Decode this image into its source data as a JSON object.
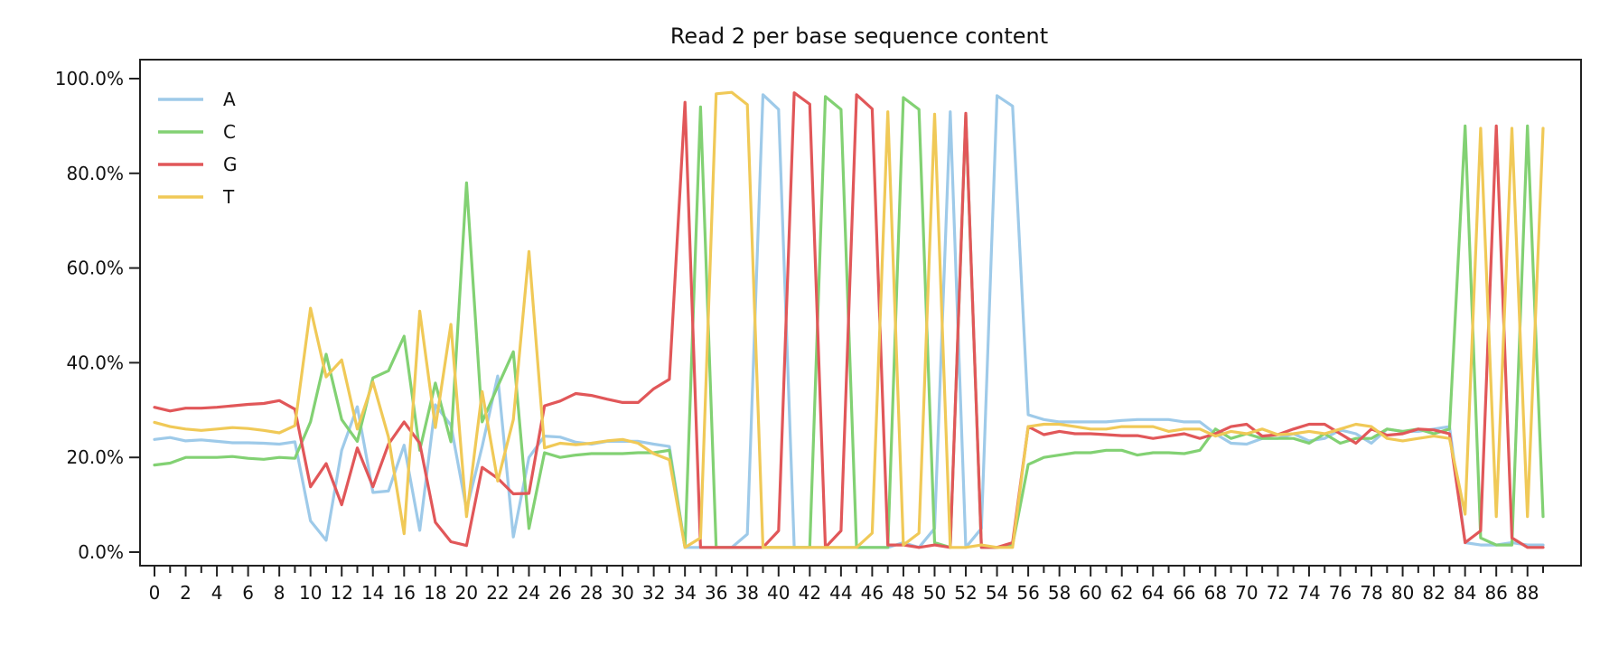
{
  "chart_data": {
    "type": "line",
    "title": "Read 2 per base sequence content",
    "xlabel": "",
    "ylabel": "",
    "xlim": [
      0,
      89
    ],
    "ylim": [
      0,
      100
    ],
    "x_ticks": [
      0,
      2,
      4,
      6,
      8,
      10,
      12,
      14,
      16,
      18,
      20,
      22,
      24,
      26,
      28,
      30,
      32,
      34,
      36,
      38,
      40,
      42,
      44,
      46,
      48,
      50,
      52,
      54,
      56,
      58,
      60,
      62,
      64,
      66,
      68,
      70,
      72,
      74,
      76,
      78,
      80,
      82,
      84,
      86,
      88
    ],
    "y_ticks": [
      {
        "value": 0,
        "label": "0.0%"
      },
      {
        "value": 20,
        "label": "20.0%"
      },
      {
        "value": 40,
        "label": "40.0%"
      },
      {
        "value": 60,
        "label": "60.0%"
      },
      {
        "value": 80,
        "label": "80.0%"
      },
      {
        "value": 100,
        "label": "100.0%"
      }
    ],
    "grid": false,
    "legend_position": "top-left",
    "x": [
      0,
      1,
      2,
      3,
      4,
      5,
      6,
      7,
      8,
      9,
      10,
      11,
      12,
      13,
      14,
      15,
      16,
      17,
      18,
      19,
      20,
      21,
      22,
      23,
      24,
      25,
      26,
      27,
      28,
      29,
      30,
      31,
      32,
      33,
      34,
      35,
      36,
      37,
      38,
      39,
      40,
      41,
      42,
      43,
      44,
      45,
      46,
      47,
      48,
      49,
      50,
      51,
      52,
      53,
      54,
      55,
      56,
      57,
      58,
      59,
      60,
      61,
      62,
      63,
      64,
      65,
      66,
      67,
      68,
      69,
      70,
      71,
      72,
      73,
      74,
      75,
      76,
      77,
      78,
      79,
      80,
      81,
      82,
      83,
      84,
      85,
      86,
      87,
      88,
      89
    ],
    "series": [
      {
        "name": "A",
        "color": "#9ecae9",
        "values": [
          23.8,
          24.2,
          23.5,
          23.7,
          23.4,
          23.1,
          23.1,
          23,
          22.8,
          23.3,
          6.6,
          2.5,
          21.5,
          30.7,
          12.6,
          12.9,
          22.6,
          4.6,
          31.1,
          26.8,
          9,
          22.3,
          37.2,
          3.2,
          20,
          24.5,
          24.3,
          23.2,
          22.8,
          23.4,
          23.4,
          23.4,
          22.8,
          22.3,
          1,
          1,
          1,
          1,
          3.8,
          96.6,
          93.5,
          1,
          1,
          1,
          1,
          1,
          1,
          1,
          2,
          1,
          5,
          93,
          1,
          5,
          96.4,
          94.2,
          29,
          28,
          27.5,
          27.5,
          27.5,
          27.5,
          27.8,
          28,
          28,
          28,
          27.5,
          27.5,
          25,
          23,
          22.8,
          24,
          24,
          25,
          23.5,
          24,
          25.8,
          25,
          23,
          26,
          25.5,
          25.5,
          26,
          26.5,
          2,
          1.5,
          1.5,
          2,
          1.5,
          1.5
        ]
      },
      {
        "name": "C",
        "color": "#82d173",
        "values": [
          18.4,
          18.8,
          20,
          20,
          20,
          20.2,
          19.8,
          19.6,
          20,
          19.8,
          27.5,
          41.8,
          28,
          23.4,
          36.8,
          38.3,
          45.6,
          21.5,
          35.7,
          23.3,
          78,
          27.5,
          35,
          42.3,
          5,
          21,
          20,
          20.5,
          20.8,
          20.8,
          20.8,
          21,
          21,
          21.5,
          1,
          94,
          1,
          1,
          1,
          1,
          1,
          1,
          1,
          96.2,
          93.5,
          1,
          1,
          1,
          96,
          93.5,
          2,
          1,
          92.3,
          1,
          1,
          1.5,
          18.5,
          20,
          20.5,
          21,
          21,
          21.5,
          21.5,
          20.5,
          21,
          21,
          20.8,
          21.5,
          26,
          24,
          25,
          24,
          24,
          24,
          23,
          25,
          23,
          24,
          24,
          26,
          25.5,
          26,
          25,
          26,
          90,
          3,
          1.5,
          1.5,
          90,
          7.5
        ]
      },
      {
        "name": "G",
        "color": "#e15759",
        "values": [
          30.6,
          29.8,
          30.4,
          30.4,
          30.6,
          30.9,
          31.2,
          31.4,
          32,
          30.2,
          13.8,
          18.7,
          10,
          22,
          13.8,
          22.8,
          27.5,
          23,
          6.3,
          2.2,
          1.4,
          17.9,
          15.6,
          12.3,
          12.4,
          30.9,
          31.9,
          33.5,
          33.1,
          32.3,
          31.6,
          31.6,
          34.5,
          36.5,
          95,
          1,
          1,
          1,
          1,
          1,
          4.5,
          97,
          94.6,
          1,
          4.5,
          96.6,
          93.6,
          1.5,
          1.5,
          1,
          1.5,
          1,
          92.7,
          1,
          1,
          2,
          26.5,
          24.8,
          25.5,
          25,
          25,
          24.8,
          24.6,
          24.6,
          24,
          24.5,
          25,
          24,
          25,
          26.5,
          27,
          24.5,
          24.8,
          26,
          27,
          27,
          25,
          23,
          26,
          24.7,
          25,
          26,
          25.8,
          25,
          2,
          4.5,
          90,
          3,
          1,
          1
        ]
      },
      {
        "name": "T",
        "color": "#f0c957",
        "values": [
          27.4,
          26.5,
          26,
          25.7,
          26,
          26.3,
          26.1,
          25.7,
          25.2,
          26.7,
          51.5,
          37,
          40.6,
          26,
          35.9,
          24.3,
          3.9,
          50.9,
          26.3,
          48.1,
          7.5,
          33.9,
          15,
          28,
          63.5,
          22,
          23,
          22.7,
          23,
          23.5,
          23.8,
          23,
          20.8,
          19.5,
          1,
          3,
          96.8,
          97.1,
          94.5,
          1,
          1,
          1,
          1,
          1,
          1,
          1,
          4,
          93,
          1.5,
          4,
          92.5,
          1,
          1,
          1.5,
          1,
          1,
          26.5,
          27,
          27,
          26.5,
          26,
          26,
          26.5,
          26.5,
          26.5,
          25.5,
          26,
          26,
          24.5,
          25.5,
          25,
          26,
          24.8,
          25,
          25.5,
          25,
          26,
          27,
          26.5,
          24,
          23.5,
          24,
          24.5,
          24,
          8,
          89.5,
          7.5,
          89.5,
          7.5,
          89.5
        ]
      }
    ]
  }
}
